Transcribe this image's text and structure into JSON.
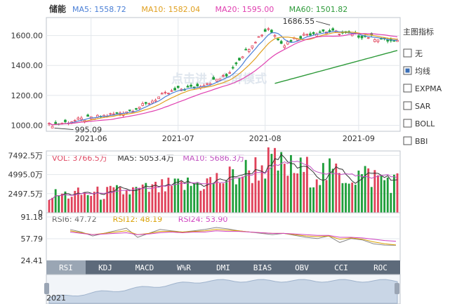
{
  "stock_name": "储能",
  "ma_header": [
    {
      "label": "MA5: 1558.72",
      "color": "#4a7fd6"
    },
    {
      "label": "MA10: 1582.04",
      "color": "#e0a020"
    },
    {
      "label": "MA20: 1595.00",
      "color": "#e040b0"
    },
    {
      "label": "MA60: 1501.82",
      "color": "#2e9a3a"
    }
  ],
  "watermark": "点击进入全屏模式",
  "side_panel": {
    "title": "主图指标",
    "options": [
      {
        "label": "无",
        "checked": false
      },
      {
        "label": "均线",
        "checked": true
      },
      {
        "label": "EXPMA",
        "checked": false
      },
      {
        "label": "SAR",
        "checked": false
      },
      {
        "label": "BOLL",
        "checked": false
      },
      {
        "label": "BBI",
        "checked": false
      }
    ]
  },
  "vol_header": [
    {
      "label": "VOL: 3766.5万",
      "color": "#e04a64"
    },
    {
      "label": "MA5: 5053.4万",
      "color": "#333333"
    },
    {
      "label": "MA10: 5686.3万",
      "color": "#c050c0"
    }
  ],
  "rsi_header": [
    {
      "label": "RSI6: 47.72",
      "color": "#666666"
    },
    {
      "label": "RSI12: 48.19",
      "color": "#d9a000"
    },
    {
      "label": "RSI24: 53.90",
      "color": "#d040c0"
    }
  ],
  "tabs": [
    "RSI",
    "KDJ",
    "MACD",
    "W%R",
    "DMI",
    "BIAS",
    "OBV",
    "CCI",
    "ROC"
  ],
  "active_tab": "RSI",
  "navigator_label": "2021",
  "colors": {
    "up": "#e0425a",
    "down": "#1e9e3a",
    "ma5": "#4a7fd6",
    "ma10": "#e0a020",
    "ma20": "#e040b0",
    "ma60": "#2e9a3a"
  },
  "chart_data": [
    {
      "type": "candlestick",
      "title": "储能",
      "x_ticks": [
        "2021-06",
        "2021-07",
        "2021-08",
        "2021-09"
      ],
      "y_ticks": [
        "1000.00",
        "1200.00",
        "1400.00",
        "1600.00"
      ],
      "ylim": [
        960,
        1720
      ],
      "annotations": [
        {
          "label": "1686.55",
          "kind": "max"
        },
        {
          "label": "995.09",
          "kind": "min"
        }
      ],
      "close_anchors": [
        [
          0,
          1002
        ],
        [
          5,
          1020
        ],
        [
          10,
          1040
        ],
        [
          15,
          1055
        ],
        [
          20,
          1075
        ],
        [
          25,
          1100
        ],
        [
          30,
          1140
        ],
        [
          35,
          1200
        ],
        [
          40,
          1240
        ],
        [
          45,
          1255
        ],
        [
          50,
          1290
        ],
        [
          55,
          1330
        ],
        [
          58,
          1420
        ],
        [
          62,
          1520
        ],
        [
          65,
          1590
        ],
        [
          68,
          1650
        ],
        [
          70,
          1600
        ],
        [
          73,
          1540
        ],
        [
          75,
          1570
        ],
        [
          80,
          1610
        ],
        [
          85,
          1630
        ],
        [
          90,
          1620
        ],
        [
          95,
          1600
        ],
        [
          100,
          1590
        ],
        [
          104,
          1570
        ],
        [
          108,
          1555
        ]
      ],
      "ma60_visible": [
        [
          70,
          1280
        ],
        [
          108,
          1500
        ]
      ]
    },
    {
      "type": "bar",
      "title": "VOL",
      "y_ticks": [
        "7492.5万",
        "4995.0万",
        "2497.5万",
        "0"
      ],
      "ylim": [
        0,
        7900
      ],
      "unit": "万",
      "level_anchors": [
        [
          0,
          2500
        ],
        [
          15,
          2700
        ],
        [
          30,
          3200
        ],
        [
          45,
          4000
        ],
        [
          55,
          4800
        ],
        [
          62,
          6000
        ],
        [
          68,
          7000
        ],
        [
          75,
          6100
        ],
        [
          85,
          5600
        ],
        [
          100,
          5200
        ],
        [
          108,
          4300
        ]
      ]
    },
    {
      "type": "line",
      "title": "RSI",
      "y_ticks": [
        "91.18",
        "57.79",
        "24.41"
      ],
      "ylim": [
        24.41,
        91.18
      ],
      "series": [
        {
          "name": "RSI6",
          "values": [
            72,
            68,
            62,
            66,
            70,
            74,
            60,
            66,
            72,
            70,
            68,
            70,
            72,
            75,
            73,
            70,
            68,
            66,
            64,
            66,
            63,
            60,
            58,
            62,
            52,
            58,
            56,
            50,
            48,
            47.72
          ]
        },
        {
          "name": "RSI12",
          "values": [
            70,
            67,
            64,
            66,
            68,
            70,
            64,
            66,
            69,
            69,
            68,
            69,
            70,
            72,
            71,
            70,
            68,
            67,
            66,
            66,
            64,
            62,
            61,
            62,
            57,
            59,
            57,
            53,
            50,
            48.19
          ]
        },
        {
          "name": "RSI24",
          "values": [
            68,
            66,
            64,
            65,
            66,
            67,
            64,
            65,
            67,
            68,
            67,
            68,
            68,
            70,
            69,
            69,
            68,
            67,
            66,
            66,
            65,
            64,
            63,
            63,
            60,
            60,
            59,
            57,
            55,
            53.9
          ]
        }
      ]
    }
  ]
}
